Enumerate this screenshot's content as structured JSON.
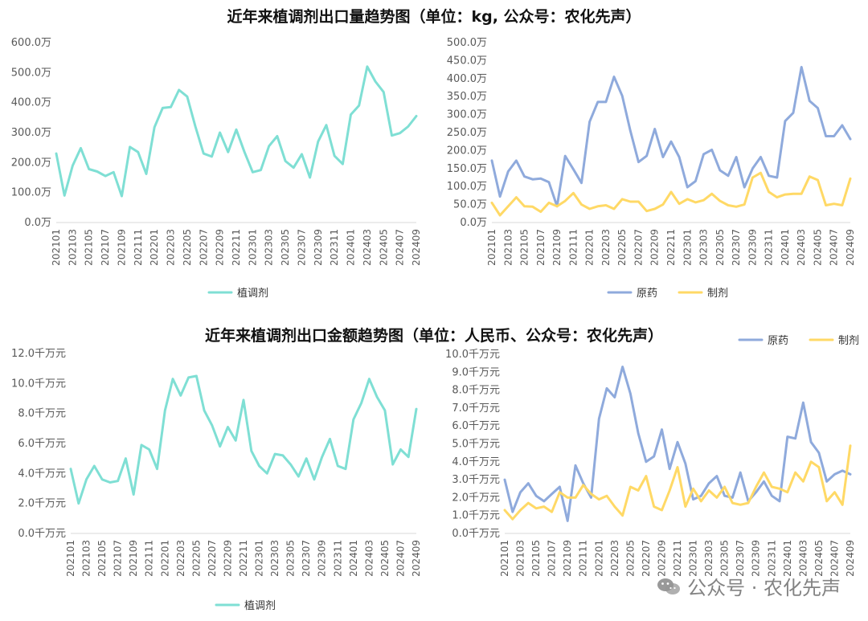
{
  "titles": {
    "top": "近年来植调剂出口量趋势图（单位：kg, 公众号：农化先声）",
    "bottom": "近年来植调剂出口金额趋势图（单位：人民币、公众号：农化先声）"
  },
  "watermark": "公众号 · 农化先声",
  "colors": {
    "teal": "#7fdfd4",
    "blue": "#8faadc",
    "yellow": "#ffd966"
  },
  "chart_data": [
    {
      "id": "c1",
      "type": "line",
      "title": "",
      "x": [
        "202101",
        "202102",
        "202103",
        "202104",
        "202105",
        "202106",
        "202107",
        "202108",
        "202109",
        "202110",
        "202111",
        "202112",
        "202201",
        "202202",
        "202203",
        "202204",
        "202205",
        "202206",
        "202207",
        "202208",
        "202209",
        "202210",
        "202211",
        "202212",
        "202301",
        "202302",
        "202303",
        "202304",
        "202305",
        "202306",
        "202307",
        "202308",
        "202309",
        "202310",
        "202311",
        "202312",
        "202401",
        "202402",
        "202403",
        "202404",
        "202405",
        "202406",
        "202407",
        "202408",
        "202409"
      ],
      "x_tick_labels": [
        "202101",
        "202103",
        "202105",
        "202107",
        "202109",
        "202111",
        "202201",
        "202203",
        "202205",
        "202207",
        "202209",
        "202211",
        "202301",
        "202303",
        "202305",
        "202307",
        "202309",
        "202311",
        "202401",
        "202403",
        "202405",
        "202407",
        "202409"
      ],
      "ylim": [
        0,
        600
      ],
      "y_tick_labels": [
        "0.0万",
        "100.0万",
        "200.0万",
        "300.0万",
        "400.0万",
        "500.0万",
        "600.0万"
      ],
      "grid": false,
      "legend": "bottom",
      "series": [
        {
          "name": "植调剂",
          "color": "#7fdfd4",
          "values": [
            230,
            90,
            190,
            248,
            178,
            170,
            155,
            168,
            88,
            252,
            235,
            162,
            318,
            382,
            385,
            442,
            420,
            320,
            230,
            220,
            300,
            235,
            310,
            235,
            168,
            175,
            255,
            288,
            205,
            183,
            228,
            150,
            270,
            325,
            222,
            195,
            360,
            390,
            520,
            470,
            435,
            290,
            298,
            320,
            355
          ]
        }
      ]
    },
    {
      "id": "c2",
      "type": "line",
      "title": "",
      "x": [
        "202101",
        "202102",
        "202103",
        "202104",
        "202105",
        "202106",
        "202107",
        "202108",
        "202109",
        "202110",
        "202111",
        "202112",
        "202201",
        "202202",
        "202203",
        "202204",
        "202205",
        "202206",
        "202207",
        "202208",
        "202209",
        "202210",
        "202211",
        "202212",
        "202301",
        "202302",
        "202303",
        "202304",
        "202305",
        "202306",
        "202307",
        "202308",
        "202309",
        "202310",
        "202311",
        "202312",
        "202401",
        "202402",
        "202403",
        "202404",
        "202405",
        "202406",
        "202407",
        "202408",
        "202409"
      ],
      "x_tick_labels": [
        "202101",
        "202103",
        "202105",
        "202107",
        "202109",
        "202111",
        "202201",
        "202203",
        "202205",
        "202207",
        "202209",
        "202211",
        "202301",
        "202303",
        "202305",
        "202307",
        "202309",
        "202311",
        "202401",
        "202403",
        "202405",
        "202407",
        "202409"
      ],
      "ylim": [
        0,
        500
      ],
      "y_tick_labels": [
        "0.0万",
        "50.0万",
        "100.0万",
        "150.0万",
        "200.0万",
        "250.0万",
        "300.0万",
        "350.0万",
        "400.0万",
        "450.0万",
        "500.0万"
      ],
      "grid": false,
      "legend": "bottom",
      "series": [
        {
          "name": "原药",
          "color": "#8faadc",
          "values": [
            172,
            72,
            142,
            172,
            128,
            120,
            122,
            112,
            45,
            185,
            148,
            110,
            280,
            335,
            335,
            405,
            352,
            255,
            168,
            185,
            260,
            182,
            225,
            182,
            98,
            115,
            190,
            202,
            145,
            130,
            182,
            98,
            150,
            182,
            130,
            125,
            282,
            305,
            432,
            338,
            318,
            240,
            240,
            270,
            232
          ]
        },
        {
          "name": "制剂",
          "color": "#ffd966",
          "values": [
            55,
            20,
            45,
            70,
            45,
            44,
            30,
            55,
            45,
            60,
            82,
            50,
            38,
            45,
            48,
            38,
            65,
            58,
            58,
            32,
            38,
            50,
            85,
            52,
            65,
            56,
            62,
            80,
            60,
            48,
            44,
            50,
            125,
            138,
            85,
            70,
            78,
            80,
            80,
            128,
            118,
            48,
            52,
            48,
            122
          ]
        }
      ]
    },
    {
      "id": "c3",
      "type": "line",
      "title": "",
      "x": [
        "202101",
        "202102",
        "202103",
        "202104",
        "202105",
        "202106",
        "202107",
        "202108",
        "202109",
        "202110",
        "202111",
        "202112",
        "202201",
        "202202",
        "202203",
        "202204",
        "202205",
        "202206",
        "202207",
        "202208",
        "202209",
        "202210",
        "202211",
        "202212",
        "202301",
        "202302",
        "202303",
        "202304",
        "202305",
        "202306",
        "202307",
        "202308",
        "202309",
        "202310",
        "202311",
        "202312",
        "202401",
        "202402",
        "202403",
        "202404",
        "202405",
        "202406",
        "202407",
        "202408",
        "202409"
      ],
      "x_tick_labels": [
        "202101",
        "202103",
        "202105",
        "202107",
        "202109",
        "202111",
        "202201",
        "202203",
        "202205",
        "202207",
        "202209",
        "202211",
        "202301",
        "202303",
        "202305",
        "202307",
        "202309",
        "202311",
        "202401",
        "202403",
        "202405",
        "202407",
        "202409"
      ],
      "ylim": [
        0,
        12
      ],
      "y_tick_labels": [
        "0.0千万元",
        "2.0千万元",
        "4.0千万元",
        "6.0千万元",
        "8.0千万元",
        "10.0千万元",
        "12.0千万元"
      ],
      "grid": false,
      "legend": "bottom",
      "series": [
        {
          "name": "植调剂",
          "color": "#7fdfd4",
          "values": [
            4.3,
            2.0,
            3.6,
            4.5,
            3.6,
            3.4,
            3.5,
            5.0,
            2.6,
            5.9,
            5.6,
            4.3,
            8.2,
            10.3,
            9.2,
            10.4,
            10.5,
            8.2,
            7.2,
            5.8,
            7.1,
            6.2,
            8.9,
            5.5,
            4.5,
            4.0,
            5.3,
            5.2,
            4.6,
            3.8,
            5.0,
            3.6,
            5.1,
            6.3,
            4.5,
            4.3,
            7.6,
            8.7,
            10.3,
            9.1,
            8.2,
            4.6,
            5.6,
            5.1,
            8.3
          ]
        }
      ]
    },
    {
      "id": "c4",
      "type": "line",
      "title": "",
      "x": [
        "202101",
        "202102",
        "202103",
        "202104",
        "202105",
        "202106",
        "202107",
        "202108",
        "202109",
        "202110",
        "202111",
        "202112",
        "202201",
        "202202",
        "202203",
        "202204",
        "202205",
        "202206",
        "202207",
        "202208",
        "202209",
        "202210",
        "202211",
        "202212",
        "202301",
        "202302",
        "202303",
        "202304",
        "202305",
        "202306",
        "202307",
        "202308",
        "202309",
        "202310",
        "202311",
        "202312",
        "202401",
        "202402",
        "202403",
        "202404",
        "202405",
        "202406",
        "202407",
        "202408",
        "202409"
      ],
      "x_tick_labels": [
        "202101",
        "202103",
        "202105",
        "202107",
        "202109",
        "202111",
        "202201",
        "202203",
        "202205",
        "202207",
        "202209",
        "202211",
        "202301",
        "202303",
        "202305",
        "202307",
        "202309",
        "202311",
        "202401",
        "202403",
        "202405",
        "202407",
        "202409"
      ],
      "ylim": [
        0,
        10
      ],
      "y_tick_labels": [
        "0.0千万元",
        "1.0千万元",
        "2.0千万元",
        "3.0千万元",
        "4.0千万元",
        "5.0千万元",
        "6.0千万元",
        "7.0千万元",
        "8.0千万元",
        "9.0千万元",
        "10.0千万元"
      ],
      "grid": false,
      "legend": "top-right",
      "series": [
        {
          "name": "原药",
          "color": "#8faadc",
          "values": [
            3.0,
            1.2,
            2.3,
            2.8,
            2.1,
            1.8,
            2.2,
            2.6,
            0.7,
            3.8,
            2.8,
            2.0,
            6.4,
            8.1,
            7.6,
            9.3,
            7.8,
            5.6,
            4.0,
            4.3,
            5.8,
            3.6,
            5.1,
            3.9,
            1.9,
            2.1,
            2.8,
            3.2,
            2.1,
            2.0,
            3.4,
            1.8,
            2.3,
            2.9,
            2.1,
            1.8,
            5.4,
            5.3,
            7.3,
            5.1,
            4.5,
            2.9,
            3.3,
            3.5,
            3.3
          ]
        },
        {
          "name": "制剂",
          "color": "#ffd966",
          "values": [
            1.3,
            0.8,
            1.3,
            1.7,
            1.4,
            1.5,
            1.2,
            2.3,
            2.0,
            2.0,
            2.7,
            2.2,
            1.9,
            2.1,
            1.5,
            1.0,
            2.6,
            2.4,
            3.2,
            1.5,
            1.3,
            2.4,
            3.7,
            1.5,
            2.5,
            1.8,
            2.4,
            2.0,
            2.6,
            1.7,
            1.6,
            1.7,
            2.6,
            3.4,
            2.6,
            2.5,
            2.3,
            3.4,
            2.9,
            4.0,
            3.7,
            1.8,
            2.3,
            1.6,
            4.9
          ]
        }
      ]
    }
  ]
}
